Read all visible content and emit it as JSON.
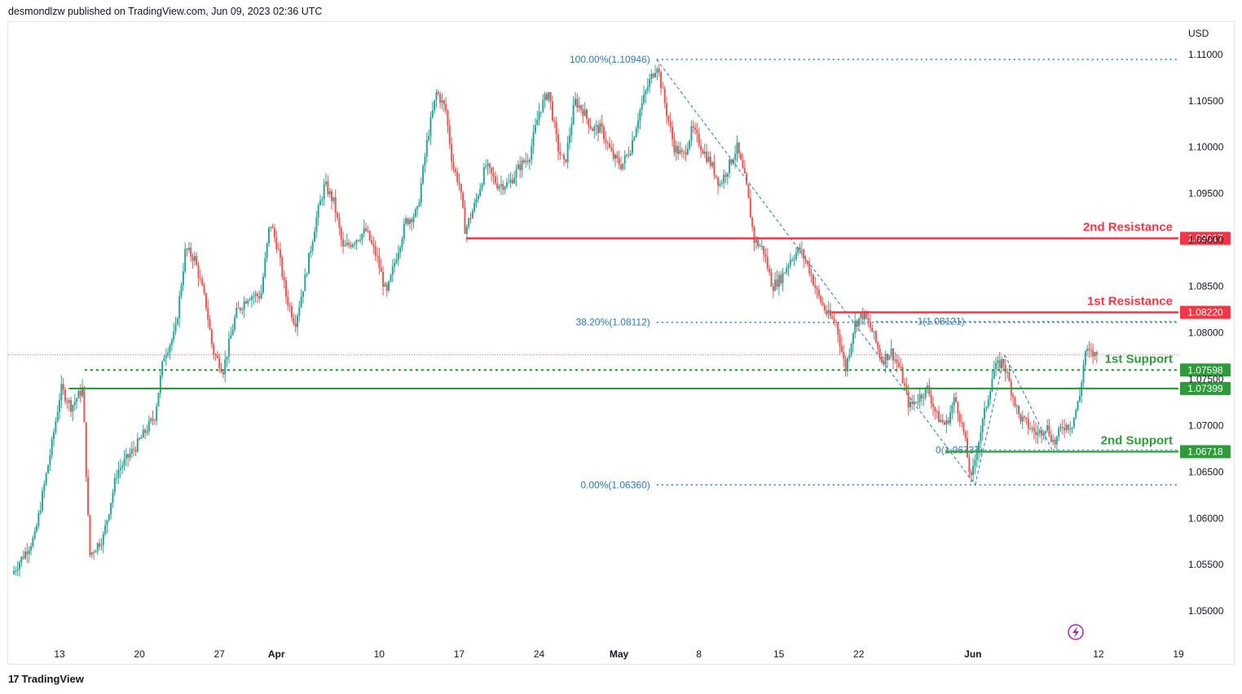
{
  "header": {
    "text": "desmondlzw published on TradingView.com, Jun 09, 2023 02:36 UTC"
  },
  "footer": {
    "logo": "17",
    "brand": "TradingView"
  },
  "colors": {
    "up": "#26a69a",
    "down": "#ef5350",
    "resistance": "#f23645",
    "support": "#2e9b3a",
    "fib": "#2a7ab8"
  },
  "chart_data": {
    "type": "candlestick",
    "currency": "USD",
    "ylim": [
      1.0465,
      1.1135
    ],
    "y_ticks": [
      "1.11000",
      "1.10500",
      "1.10000",
      "1.09500",
      "1.09000",
      "1.08500",
      "1.08000",
      "1.07500",
      "1.07000",
      "1.06500",
      "1.06000",
      "1.05500",
      "1.05000"
    ],
    "x_ticks": [
      {
        "label": "13",
        "day": 12,
        "bold": false
      },
      {
        "label": "20",
        "day": 19,
        "bold": false
      },
      {
        "label": "27",
        "day": 26,
        "bold": false
      },
      {
        "label": "Apr",
        "day": 31,
        "bold": true
      },
      {
        "label": "10",
        "day": 40,
        "bold": false
      },
      {
        "label": "17",
        "day": 47,
        "bold": false
      },
      {
        "label": "24",
        "day": 54,
        "bold": false
      },
      {
        "label": "May",
        "day": 61,
        "bold": true
      },
      {
        "label": "8",
        "day": 68,
        "bold": false
      },
      {
        "label": "15",
        "day": 75,
        "bold": false
      },
      {
        "label": "22",
        "day": 82,
        "bold": false
      },
      {
        "label": "Jun",
        "day": 92,
        "bold": true
      },
      {
        "label": "12",
        "day": 103,
        "bold": false
      },
      {
        "label": "19",
        "day": 110,
        "bold": false
      }
    ],
    "xlim": [
      7.5,
      110
    ],
    "levels": [
      {
        "name": "2nd Resistance",
        "value": 1.09017,
        "tag": "1.09017",
        "kind": "resistance",
        "x_from_day": 47.6
      },
      {
        "name": "1st Resistance",
        "value": 1.0822,
        "tag": "1.08220",
        "kind": "resistance",
        "x_from_day": 79.6
      },
      {
        "name": "1st Support",
        "value": 1.07598,
        "tag": "1.07598",
        "kind": "support-dotted",
        "x_from_day": 14.2
      },
      {
        "name": "",
        "value": 1.07399,
        "tag": "1.07399",
        "kind": "support",
        "x_from_day": 12.8
      },
      {
        "name": "2nd Support",
        "value": 1.06718,
        "tag": "1.06718",
        "kind": "support",
        "x_from_day": 89.6
      }
    ],
    "fib": [
      {
        "label": "100.00%(1.10946)",
        "value": 1.10946
      },
      {
        "label": "38.20%(1.08112)",
        "value": 1.08112
      },
      {
        "label": "0.00%(1.06360)",
        "value": 1.0636
      }
    ],
    "fib_extension": [
      {
        "label": "1(1.08121)",
        "value": 1.08121
      },
      {
        "label": "0(1.06737)",
        "value": 1.06737
      }
    ],
    "current_price": 1.07762,
    "candles_description": "EUR/USD 4H candles, Mar 08 to Jun 09 2023; keypoints approximate the close path",
    "keypoints": [
      [
        8,
        1.054
      ],
      [
        10,
        1.058
      ],
      [
        11.5,
        1.068
      ],
      [
        12.3,
        1.074
      ],
      [
        13.2,
        1.072
      ],
      [
        14.2,
        1.074
      ],
      [
        14.8,
        1.056
      ],
      [
        16,
        1.058
      ],
      [
        17.2,
        1.065
      ],
      [
        19,
        1.068
      ],
      [
        20.5,
        1.071
      ],
      [
        21.3,
        1.0775
      ],
      [
        22.3,
        1.08
      ],
      [
        23.2,
        1.089
      ],
      [
        24,
        1.088
      ],
      [
        25,
        1.083
      ],
      [
        25.6,
        1.078
      ],
      [
        26.5,
        1.076
      ],
      [
        27.6,
        1.082
      ],
      [
        28.7,
        1.084
      ],
      [
        29.8,
        1.084
      ],
      [
        30.6,
        1.092
      ],
      [
        31.3,
        1.089
      ],
      [
        32,
        1.084
      ],
      [
        32.8,
        1.081
      ],
      [
        33.7,
        1.086
      ],
      [
        34.6,
        1.092
      ],
      [
        35.4,
        1.096
      ],
      [
        36.2,
        1.094
      ],
      [
        37,
        1.089
      ],
      [
        38,
        1.09
      ],
      [
        39,
        1.091
      ],
      [
        40,
        1.088
      ],
      [
        40.8,
        1.084
      ],
      [
        41.6,
        1.088
      ],
      [
        42.5,
        1.092
      ],
      [
        43.5,
        1.093
      ],
      [
        44.4,
        1.101
      ],
      [
        45.2,
        1.106
      ],
      [
        46,
        1.104
      ],
      [
        46.6,
        1.098
      ],
      [
        47.2,
        1.096
      ],
      [
        47.7,
        1.091
      ],
      [
        48.6,
        1.094
      ],
      [
        49.5,
        1.098
      ],
      [
        50.5,
        1.096
      ],
      [
        51.5,
        1.096
      ],
      [
        52.5,
        1.098
      ],
      [
        53.3,
        1.099
      ],
      [
        54.2,
        1.104
      ],
      [
        55,
        1.106
      ],
      [
        55.8,
        1.1
      ],
      [
        56.4,
        1.098
      ],
      [
        57.3,
        1.105
      ],
      [
        58,
        1.104
      ],
      [
        58.8,
        1.102
      ],
      [
        59.6,
        1.102
      ],
      [
        60.6,
        1.099
      ],
      [
        61.4,
        1.098
      ],
      [
        62.2,
        1.1
      ],
      [
        63,
        1.104
      ],
      [
        63.8,
        1.107
      ],
      [
        64.5,
        1.109
      ],
      [
        65.3,
        1.104
      ],
      [
        66,
        1.1
      ],
      [
        66.8,
        1.099
      ],
      [
        67.6,
        1.102
      ],
      [
        68.4,
        1.1
      ],
      [
        69.3,
        1.098
      ],
      [
        70,
        1.096
      ],
      [
        70.8,
        1.098
      ],
      [
        71.5,
        1.1
      ],
      [
        72.3,
        1.096
      ],
      [
        73,
        1.09
      ],
      [
        73.8,
        1.089
      ],
      [
        74.6,
        1.085
      ],
      [
        75.4,
        1.086
      ],
      [
        76.2,
        1.088
      ],
      [
        77,
        1.089
      ],
      [
        77.8,
        1.087
      ],
      [
        78.6,
        1.084
      ],
      [
        79.4,
        1.082
      ],
      [
        80.2,
        1.081
      ],
      [
        81,
        1.076
      ],
      [
        81.8,
        1.081
      ],
      [
        82.6,
        1.082
      ],
      [
        83.4,
        1.08
      ],
      [
        84.2,
        1.077
      ],
      [
        85,
        1.078
      ],
      [
        85.8,
        1.076
      ],
      [
        86.6,
        1.072
      ],
      [
        87.4,
        1.073
      ],
      [
        88.2,
        1.074
      ],
      [
        89,
        1.071
      ],
      [
        89.8,
        1.07
      ],
      [
        90.6,
        1.073
      ],
      [
        91.4,
        1.069
      ],
      [
        92,
        1.064
      ],
      [
        92.6,
        1.068
      ],
      [
        93.3,
        1.072
      ],
      [
        94,
        1.076
      ],
      [
        94.8,
        1.077
      ],
      [
        95.5,
        1.074
      ],
      [
        96.2,
        1.071
      ],
      [
        97,
        1.07
      ],
      [
        97.8,
        1.069
      ],
      [
        98.6,
        1.07
      ],
      [
        99.3,
        1.068
      ],
      [
        100,
        1.07
      ],
      [
        100.8,
        1.07
      ],
      [
        101.5,
        1.073
      ],
      [
        102,
        1.078
      ],
      [
        102.8,
        1.0776
      ]
    ]
  }
}
